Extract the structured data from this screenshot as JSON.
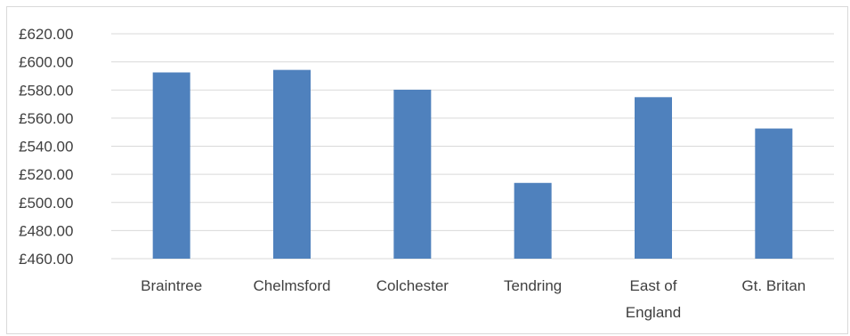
{
  "chart_data": {
    "type": "bar",
    "title": "",
    "xlabel": "",
    "ylabel": "",
    "categories": [
      [
        "Braintree"
      ],
      [
        "Chelmsford"
      ],
      [
        "Colchester"
      ],
      [
        "Tendring"
      ],
      [
        "East of",
        "England"
      ],
      [
        "Gt. Britan"
      ]
    ],
    "values": [
      592.5,
      594.3,
      580.2,
      513.9,
      574.9,
      552.6
    ],
    "ylim": [
      460,
      620
    ],
    "ytick_step": 20,
    "ytick_format": "£{v}.00",
    "grid": true,
    "legend": "none",
    "colors": {
      "bar": "#4f81bd",
      "grid": "#d9d9d9",
      "axis": "#d9d9d9",
      "text": "#404040"
    }
  }
}
